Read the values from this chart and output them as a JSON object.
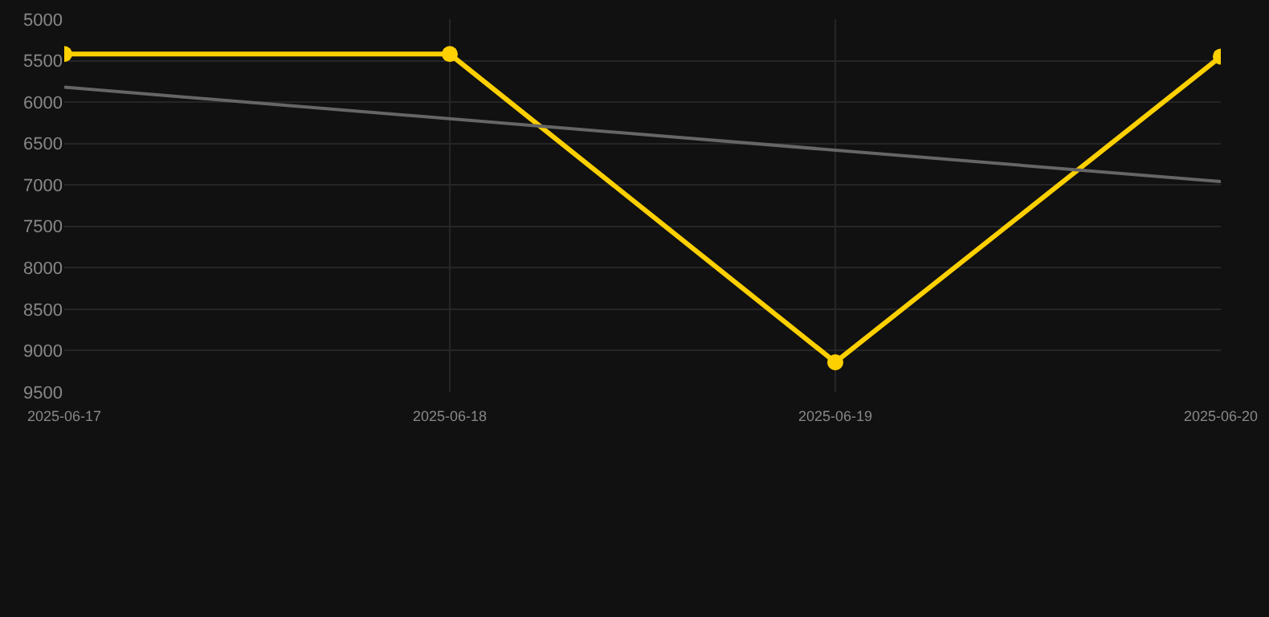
{
  "chart_data": {
    "type": "line",
    "x": [
      "2025-06-17",
      "2025-06-18",
      "2025-06-19",
      "2025-06-20"
    ],
    "series": [
      {
        "color": "#ffd000",
        "values": [
          5420,
          5420,
          9140,
          5450
        ],
        "marker": "circle"
      },
      {
        "type": "line",
        "color": "#666666",
        "values": [
          5820,
          null,
          null,
          6960
        ],
        "marker": "none",
        "x": [
          "2025-06-17",
          "2025-06-18",
          "2025-06-19",
          "2025-06-20"
        ]
      }
    ],
    "ylim": [
      9500,
      5000
    ],
    "yticks": [
      5000,
      5500,
      6000,
      6500,
      7000,
      7500,
      8000,
      8500,
      9000,
      9500
    ],
    "xlim": [
      "2025-06-17",
      "2025-06-20"
    ],
    "xticks": [
      "2025-06-17",
      "2025-06-18",
      "2025-06-19",
      "2025-06-20"
    ],
    "grid": true
  }
}
